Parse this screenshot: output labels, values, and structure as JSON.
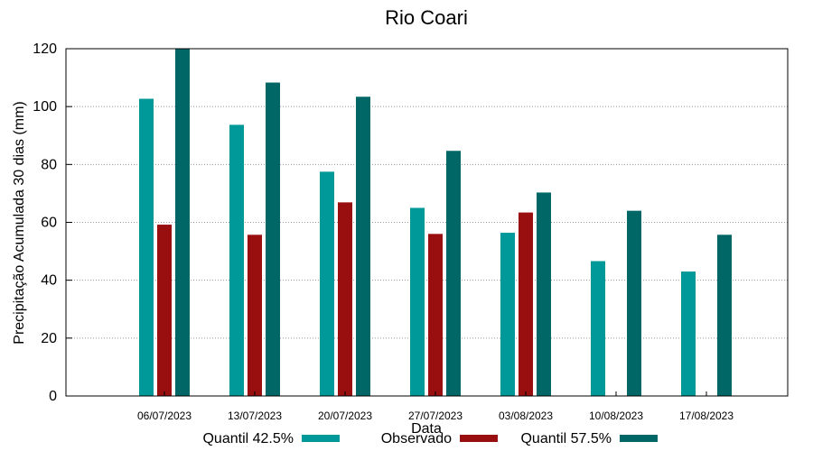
{
  "chart_data": {
    "type": "bar",
    "title": "Rio Coari",
    "xlabel": "Data",
    "ylabel": "Precipitação Acumulada 30 dias (mm)",
    "ylim": [
      0,
      120
    ],
    "yticks": [
      0,
      20,
      40,
      60,
      80,
      100,
      120
    ],
    "grid": true,
    "legend_position": "bottom",
    "categories": [
      "06/07/2023",
      "13/07/2023",
      "20/07/2023",
      "27/07/2023",
      "03/08/2023",
      "10/08/2023",
      "17/08/2023"
    ],
    "series": [
      {
        "name": "Quantil 42.5%",
        "color": "#009999",
        "values": [
          102.7,
          93.7,
          77.5,
          65.0,
          56.4,
          46.6,
          43.0
        ]
      },
      {
        "name": "Observado",
        "color": "#990f0f",
        "values": [
          59.2,
          55.7,
          66.9,
          56.0,
          63.4,
          null,
          null
        ]
      },
      {
        "name": "Quantil 57.5%",
        "color": "#006666",
        "values": [
          120.0,
          108.3,
          103.4,
          84.7,
          70.3,
          64.0,
          55.7
        ]
      }
    ]
  }
}
